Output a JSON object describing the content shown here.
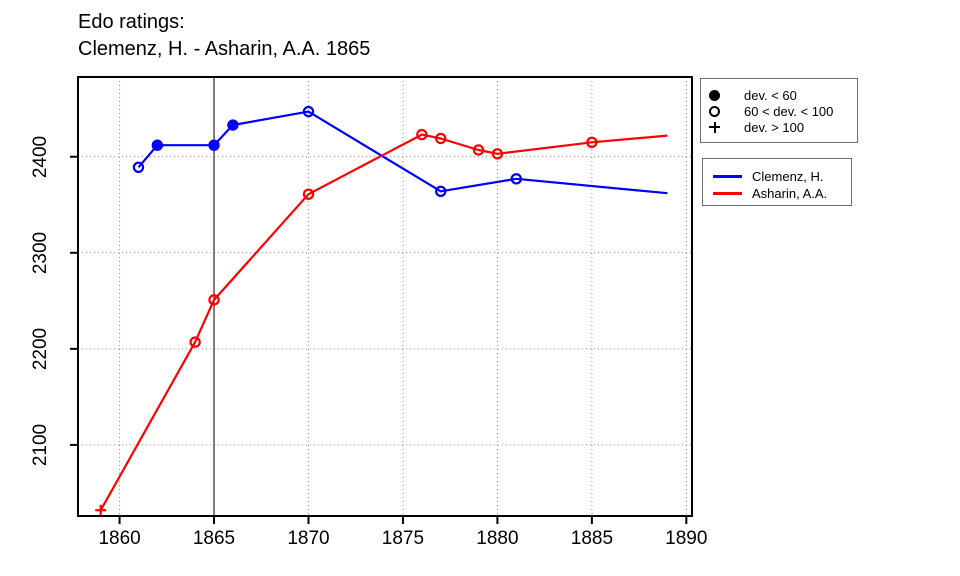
{
  "title": {
    "line1": "Edo ratings:",
    "line2": "Clemenz, H. - Asharin, A.A. 1865"
  },
  "colors": {
    "clemenz": "#0000ff",
    "asharin": "#ff0000",
    "grid": "#8c8c8c",
    "axis": "#000000",
    "event_line": "#000000"
  },
  "chart_data": {
    "type": "line",
    "title": "Edo ratings: Clemenz, H. - Asharin, A.A. 1865",
    "xlabel": "",
    "ylabel": "",
    "xlim": [
      1857.8,
      1890.3
    ],
    "ylim": [
      2026,
      2483
    ],
    "x_ticks": [
      1860,
      1865,
      1870,
      1875,
      1880,
      1885,
      1890
    ],
    "y_ticks": [
      2100,
      2200,
      2300,
      2400
    ],
    "grid": true,
    "grid_style": "dotted",
    "event_year": 1865,
    "legend_position": "outside-right",
    "marker_legend": [
      {
        "marker": "filled-circle",
        "label": "dev. < 60"
      },
      {
        "marker": "open-circle",
        "label": "60 < dev. < 100"
      },
      {
        "marker": "plus",
        "label": "dev. > 100"
      }
    ],
    "series": [
      {
        "name": "Clemenz, H.",
        "color": "#0000ff",
        "points": [
          {
            "year": 1861,
            "rating": 2389,
            "marker": "open-circle"
          },
          {
            "year": 1862,
            "rating": 2412,
            "marker": "filled-circle"
          },
          {
            "year": 1865,
            "rating": 2412,
            "marker": "filled-circle"
          },
          {
            "year": 1866,
            "rating": 2433,
            "marker": "filled-circle"
          },
          {
            "year": 1870,
            "rating": 2447,
            "marker": "open-circle"
          },
          {
            "year": 1877,
            "rating": 2364,
            "marker": "open-circle"
          },
          {
            "year": 1881,
            "rating": 2377,
            "marker": "open-circle"
          },
          {
            "year": 1889,
            "rating": 2362,
            "marker": "none"
          }
        ]
      },
      {
        "name": "Asharin, A.A.",
        "color": "#ff0000",
        "points": [
          {
            "year": 1859,
            "rating": 2032,
            "marker": "plus"
          },
          {
            "year": 1864,
            "rating": 2207,
            "marker": "open-circle"
          },
          {
            "year": 1865,
            "rating": 2251,
            "marker": "open-circle"
          },
          {
            "year": 1870,
            "rating": 2361,
            "marker": "open-circle"
          },
          {
            "year": 1876,
            "rating": 2423,
            "marker": "open-circle"
          },
          {
            "year": 1877,
            "rating": 2419,
            "marker": "open-circle"
          },
          {
            "year": 1879,
            "rating": 2407,
            "marker": "open-circle"
          },
          {
            "year": 1880,
            "rating": 2403,
            "marker": "open-circle"
          },
          {
            "year": 1885,
            "rating": 2415,
            "marker": "open-circle"
          },
          {
            "year": 1889,
            "rating": 2422,
            "marker": "none"
          }
        ]
      }
    ]
  }
}
